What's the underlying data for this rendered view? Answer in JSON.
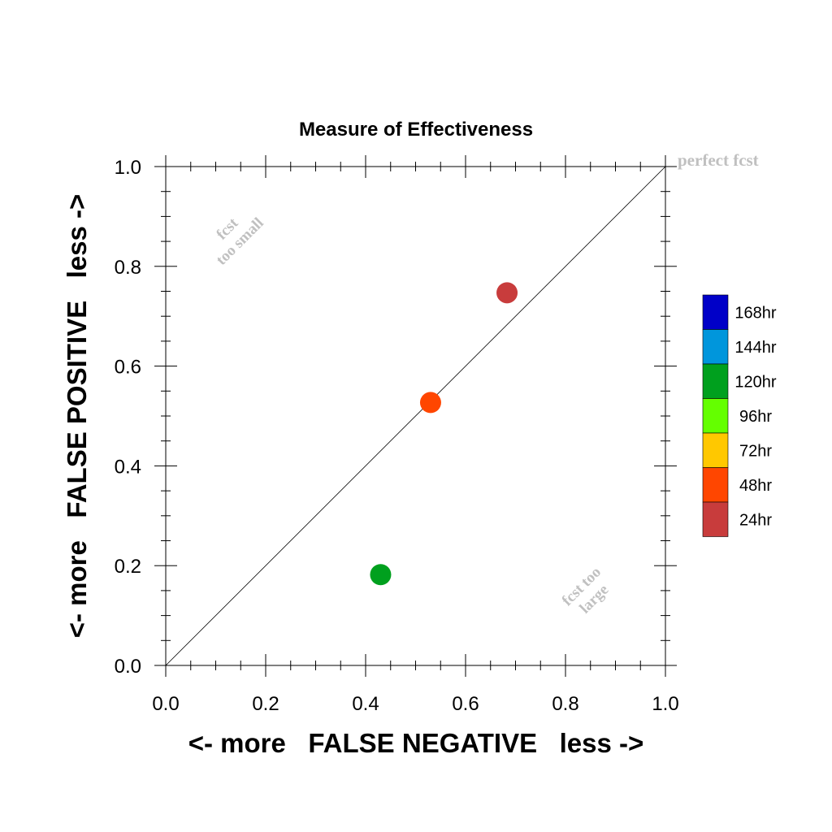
{
  "chart_data": {
    "type": "scatter",
    "title": "Measure of Effectiveness",
    "xlabel": "<- more   FALSE NEGATIVE   less ->",
    "ylabel": "<- more   FALSE POSITIVE   less ->",
    "xlim": [
      0.0,
      1.0
    ],
    "ylim": [
      0.0,
      1.0
    ],
    "xticks": [
      "0.0",
      "0.2",
      "0.4",
      "0.6",
      "0.8",
      "1.0"
    ],
    "yticks": [
      "0.0",
      "0.2",
      "0.4",
      "0.6",
      "0.8",
      "1.0"
    ],
    "grid": false,
    "reference_line": {
      "from": [
        0.0,
        0.0
      ],
      "to": [
        1.0,
        1.0
      ]
    },
    "annotations": {
      "perfect": "perfect fcst",
      "too_small": [
        "fcst",
        "too small"
      ],
      "too_large": [
        "fcst too",
        "large"
      ]
    },
    "legend": {
      "placement": "right",
      "entries": [
        {
          "label": "168hr",
          "color": "#0000c8"
        },
        {
          "label": "144hr",
          "color": "#0096dc"
        },
        {
          "label": "120hr",
          "color": "#00a01e"
        },
        {
          "label": "96hr",
          "color": "#64ff00"
        },
        {
          "label": "72hr",
          "color": "#ffc800"
        },
        {
          "label": "48hr",
          "color": "#ff4600"
        },
        {
          "label": "24hr",
          "color": "#c83c3c"
        }
      ]
    },
    "points": [
      {
        "series": "24hr",
        "x": 0.683,
        "y": 0.747,
        "color": "#c83c3c"
      },
      {
        "series": "48hr",
        "x": 0.53,
        "y": 0.527,
        "color": "#ff4600"
      },
      {
        "series": "120hr",
        "x": 0.43,
        "y": 0.182,
        "color": "#00a01e"
      }
    ],
    "annotation_color": "#c0c0c0"
  }
}
